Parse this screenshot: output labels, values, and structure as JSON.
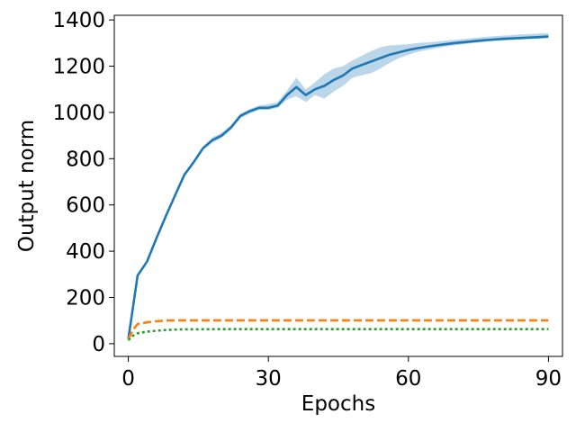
{
  "chart_data": {
    "type": "line",
    "title": "",
    "xlabel": "Epochs",
    "ylabel": "Output norm",
    "xlim": [
      -3,
      93
    ],
    "ylim": [
      -55,
      1420
    ],
    "xticks": [
      0,
      30,
      60,
      90
    ],
    "yticks": [
      0,
      200,
      400,
      600,
      800,
      1000,
      1200,
      1400
    ],
    "grid": false,
    "legend": "none",
    "colors": {
      "blue": "#1f77b4",
      "orange": "#ff7f0e",
      "green": "#2ca02c",
      "band": "#1f77b4"
    },
    "series": [
      {
        "style": "solid",
        "color": "#1f77b4",
        "band": true,
        "x": [
          0,
          2,
          4,
          6,
          8,
          10,
          12,
          14,
          16,
          18,
          20,
          22,
          24,
          26,
          28,
          30,
          32,
          34,
          36,
          38,
          40,
          42,
          44,
          46,
          48,
          50,
          52,
          54,
          56,
          58,
          60,
          62,
          64,
          66,
          68,
          70,
          72,
          74,
          76,
          78,
          80,
          82,
          84,
          86,
          88,
          90
        ],
        "y": [
          20,
          295,
          355,
          455,
          550,
          640,
          730,
          785,
          845,
          880,
          900,
          935,
          985,
          1005,
          1020,
          1020,
          1030,
          1075,
          1110,
          1075,
          1100,
          1115,
          1140,
          1160,
          1190,
          1205,
          1220,
          1235,
          1250,
          1260,
          1270,
          1278,
          1284,
          1290,
          1295,
          1300,
          1304,
          1308,
          1312,
          1315,
          1318,
          1320,
          1322,
          1324,
          1326,
          1328
        ],
        "lower": [
          20,
          295,
          355,
          455,
          550,
          640,
          725,
          780,
          838,
          868,
          890,
          925,
          975,
          995,
          1010,
          1010,
          1020,
          1055,
          1070,
          1045,
          1075,
          1060,
          1090,
          1115,
          1150,
          1160,
          1170,
          1190,
          1215,
          1235,
          1250,
          1262,
          1270,
          1278,
          1285,
          1290,
          1295,
          1300,
          1304,
          1308,
          1310,
          1313,
          1315,
          1317,
          1319,
          1321
        ],
        "upper": [
          20,
          295,
          355,
          455,
          550,
          640,
          735,
          790,
          852,
          892,
          912,
          945,
          995,
          1015,
          1030,
          1035,
          1045,
          1095,
          1150,
          1100,
          1130,
          1165,
          1190,
          1200,
          1225,
          1245,
          1265,
          1282,
          1290,
          1292,
          1295,
          1300,
          1303,
          1306,
          1310,
          1314,
          1318,
          1322,
          1326,
          1329,
          1332,
          1334,
          1337,
          1339,
          1341,
          1343
        ]
      },
      {
        "style": "dashed",
        "color": "#ff7f0e",
        "band": false,
        "x": [
          0,
          1,
          2,
          4,
          6,
          8,
          10,
          12,
          15,
          20,
          30,
          40,
          50,
          60,
          70,
          80,
          90
        ],
        "y": [
          20,
          60,
          85,
          92,
          97,
          100,
          101,
          101,
          101,
          101,
          101,
          101,
          101,
          101,
          101,
          101,
          101
        ]
      },
      {
        "style": "dotted",
        "color": "#2ca02c",
        "band": false,
        "x": [
          0,
          1,
          2,
          4,
          6,
          8,
          10,
          12,
          15,
          20,
          30,
          40,
          50,
          60,
          70,
          80,
          90
        ],
        "y": [
          15,
          35,
          45,
          52,
          56,
          59,
          61,
          62,
          62,
          63,
          63,
          63,
          63,
          63,
          63,
          63,
          63
        ]
      }
    ]
  }
}
